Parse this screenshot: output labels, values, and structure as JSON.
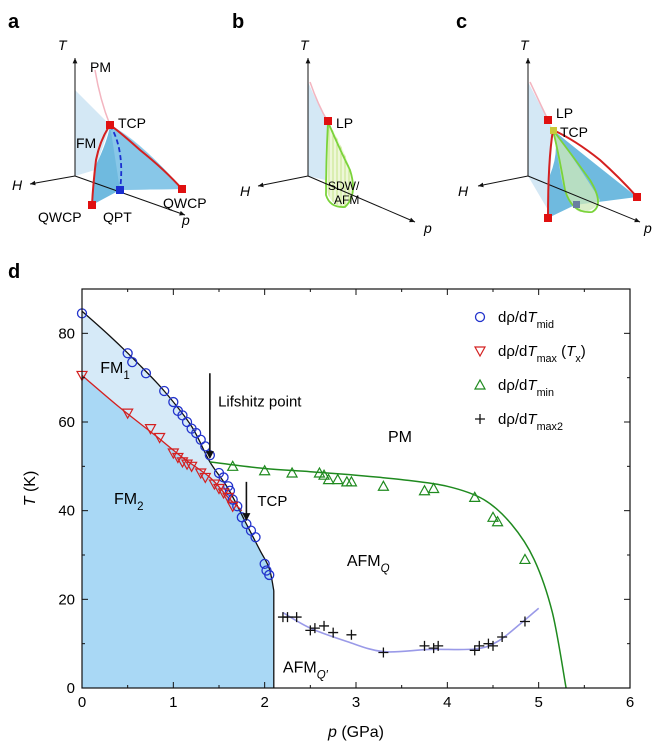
{
  "panels": {
    "a": {
      "letter": "a",
      "axis_T": "T",
      "axis_H": "H",
      "axis_p": "p",
      "labels": {
        "pm": "PM",
        "fm": "FM",
        "tcp": "TCP",
        "qwcp_left": "QWCP",
        "qpt": "QPT",
        "qwcp_right": "QWCP"
      }
    },
    "b": {
      "letter": "b",
      "axis_T": "T",
      "axis_H": "H",
      "axis_p": "p",
      "labels": {
        "lp": "LP",
        "sdw_line1": "SDW/",
        "sdw_line2": "AFM"
      }
    },
    "c": {
      "letter": "c",
      "axis_T": "T",
      "axis_H": "H",
      "axis_p": "p",
      "labels": {
        "lp": "LP",
        "tcp": "TCP"
      }
    }
  },
  "panel_d": {
    "letter": "d"
  },
  "chart_data": {
    "type": "scatter",
    "xlabel_var": "p",
    "xlabel_unit": "(GPa)",
    "ylabel_var": "T",
    "ylabel_unit": "(K)",
    "xlim": [
      0,
      6
    ],
    "ylim": [
      0,
      90
    ],
    "xticks": [
      0,
      1,
      2,
      3,
      4,
      5,
      6
    ],
    "yticks": [
      0,
      20,
      40,
      60,
      80
    ],
    "regions": {
      "fm1": {
        "base": "FM",
        "sub": "1"
      },
      "fm2": {
        "base": "FM",
        "sub": "2"
      },
      "pm": "PM",
      "afmq": {
        "base": "AFM",
        "sub": "Q"
      },
      "afmq2": {
        "base": "AFM",
        "sub": "Q′"
      }
    },
    "annotations": {
      "lifshitz": "Lifshitz point",
      "tcp": "TCP"
    },
    "colors": {
      "mid": "#2233cc",
      "max": "#d42020",
      "min": "#1f8a1f",
      "max2": "#111111",
      "fm1_fill": "#d6eaf8",
      "fm2_fill": "#a9d8f5",
      "afm_line": "#9a9ae8"
    },
    "legend": {
      "placement": "top-right",
      "entries": [
        {
          "pre": "dρ/d",
          "var": "T",
          "sub": "mid",
          "post": ""
        },
        {
          "pre": "dρ/d",
          "var": "T",
          "sub": "max",
          "post": " (",
          "var2": "T",
          "sub2": "x",
          "post2": ")"
        },
        {
          "pre": "dρ/d",
          "var": "T",
          "sub": "min",
          "post": ""
        },
        {
          "pre": "dρ/d",
          "var": "T",
          "sub": "max2",
          "post": ""
        }
      ]
    },
    "series": [
      {
        "name": "dρ/dTmid",
        "marker": "circle",
        "x": [
          0.0,
          0.5,
          0.55,
          0.7,
          0.9,
          1.0,
          1.05,
          1.1,
          1.15,
          1.2,
          1.25,
          1.3,
          1.35,
          1.4,
          1.5,
          1.55,
          1.6,
          1.62,
          1.65,
          1.7,
          1.75,
          1.8,
          1.85,
          1.9,
          2.0,
          2.02,
          2.05
        ],
        "y": [
          84.5,
          75.5,
          73.5,
          71,
          67,
          64.5,
          62.5,
          61.5,
          60,
          58.5,
          57.5,
          56,
          54.5,
          52.5,
          48.5,
          47.5,
          45.5,
          44.5,
          42.5,
          41,
          38.5,
          37,
          35.5,
          34,
          28,
          26.5,
          25.5
        ]
      },
      {
        "name": "dρ/dTmax (Tx)",
        "marker": "triangle-down",
        "x": [
          0.0,
          0.5,
          0.75,
          0.85,
          1.0,
          1.05,
          1.1,
          1.15,
          1.2,
          1.3,
          1.35,
          1.45,
          1.5,
          1.55,
          1.6,
          1.65
        ],
        "y": [
          70.5,
          62,
          58.5,
          56.5,
          53,
          52,
          51,
          50.5,
          50,
          48.5,
          47.5,
          46,
          45,
          44,
          43,
          41
        ]
      },
      {
        "name": "dρ/dTmin",
        "marker": "triangle-up",
        "x": [
          1.65,
          2.0,
          2.3,
          2.6,
          2.65,
          2.7,
          2.8,
          2.9,
          2.95,
          3.3,
          3.75,
          3.85,
          4.3,
          4.5,
          4.55,
          4.85
        ],
        "y": [
          50,
          49,
          48.5,
          48.5,
          48,
          47,
          47,
          46.5,
          46.5,
          45.5,
          44.5,
          45,
          43,
          38.5,
          37.5,
          29
        ]
      },
      {
        "name": "dρ/dTmax2",
        "marker": "plus",
        "x": [
          2.2,
          2.25,
          2.35,
          2.5,
          2.55,
          2.65,
          2.75,
          2.95,
          3.3,
          3.75,
          3.85,
          3.9,
          4.3,
          4.35,
          4.45,
          4.5,
          4.6,
          4.85
        ],
        "y": [
          16,
          16,
          16,
          13,
          13.5,
          14,
          12.5,
          12,
          8,
          9.5,
          9,
          9.5,
          8.5,
          9.5,
          10,
          9.5,
          11.5,
          15
        ]
      }
    ]
  }
}
